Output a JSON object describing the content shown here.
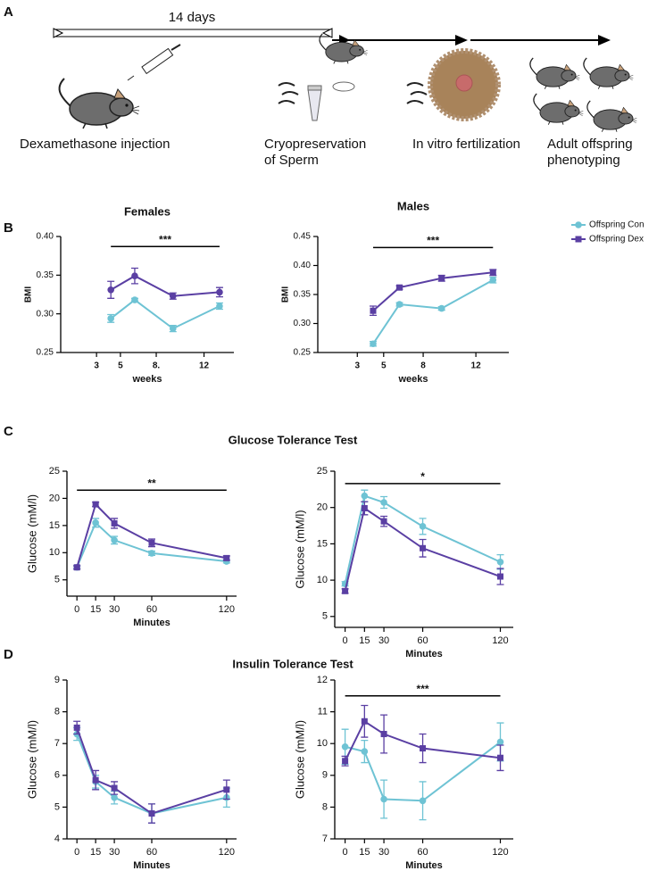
{
  "figure": {
    "panel_labels": [
      "A",
      "B",
      "C",
      "D"
    ],
    "duration": "14 days",
    "steps": [
      [
        "Dexamethasone injection"
      ],
      [
        "Cryopreservation",
        "of Sperm"
      ],
      [
        "In vitro fertilization"
      ],
      [
        "Adult offspring",
        "phenotyping"
      ]
    ],
    "section_titles": [
      "Glucose Tolerance Test",
      "Insulin Tolerance Test"
    ]
  },
  "chart_data": [
    {
      "type": "line",
      "title": "Females",
      "xlabel": "weeks",
      "ylabel": "BMI",
      "x": [
        4.2,
        6.2,
        9.4,
        13.3
      ],
      "xlim": [
        0,
        14.5
      ],
      "xticks": [
        3,
        5,
        {
          "value": 8,
          "label": "8."
        },
        12
      ],
      "ylim": [
        0.25,
        0.4
      ],
      "yticks": [
        {
          "value": 0.25,
          "label": "0.25"
        },
        {
          "value": 0.3,
          "label": "0.30"
        },
        {
          "value": 0.35,
          "label": "0.35"
        },
        {
          "value": 0.4,
          "label": "0.40"
        }
      ],
      "series": [
        {
          "color": "#6ec3d4",
          "marker": "circle",
          "values": [
            0.294,
            0.318,
            0.281,
            0.31
          ],
          "errors": [
            0.005,
            0.002,
            0.004,
            0.004
          ]
        },
        {
          "color": "#5a3fa3",
          "marker": "circle",
          "values": [
            0.331,
            0.349,
            0.323,
            0.328
          ],
          "errors": [
            0.011,
            0.01,
            0.004,
            0.006
          ]
        }
      ],
      "annotation": {
        "text": "***",
        "x": [
          4.2,
          13.3
        ],
        "y": 0.387
      }
    },
    {
      "type": "line",
      "title": "Males",
      "xlabel": "weeks",
      "ylabel": "BMI",
      "x": [
        4.2,
        6.2,
        9.4,
        13.3
      ],
      "xlim": [
        0,
        14.5
      ],
      "xticks": [
        3,
        5,
        8,
        12
      ],
      "ylim": [
        0.25,
        0.45
      ],
      "yticks": [
        {
          "value": 0.25,
          "label": "0.25"
        },
        {
          "value": 0.3,
          "label": "0.30"
        },
        {
          "value": 0.35,
          "label": "0.35"
        },
        {
          "value": 0.4,
          "label": "0.40"
        },
        {
          "value": 0.45,
          "label": "0.45"
        }
      ],
      "series": [
        {
          "name": "Offspring Con",
          "color": "#6ec3d4",
          "marker": "circle",
          "values": [
            0.265,
            0.333,
            0.326,
            0.375
          ],
          "errors": [
            0.004,
            0.003,
            0.003,
            0.005
          ]
        },
        {
          "name": "Offspring Dex",
          "color": "#5a3fa3",
          "marker": "square",
          "values": [
            0.322,
            0.362,
            0.378,
            0.388
          ],
          "errors": [
            0.008,
            0.003,
            0.005,
            0.005
          ]
        }
      ],
      "legend": "outside right",
      "annotation": {
        "text": "***",
        "x": [
          4.2,
          13.3
        ],
        "y": 0.431
      }
    },
    {
      "type": "line",
      "xlabel": "Minutes",
      "ylabel": "Glucose (mM/l)",
      "x": [
        0,
        15,
        30,
        60,
        120
      ],
      "xlim": [
        -8,
        128
      ],
      "xticks": [
        0,
        15,
        30,
        60,
        120
      ],
      "ylim": [
        2,
        25
      ],
      "yticks": [
        5,
        10,
        15,
        20,
        25
      ],
      "series": [
        {
          "color": "#6ec3d4",
          "marker": "circle",
          "values": [
            7.3,
            15.5,
            12.3,
            9.9,
            8.4
          ],
          "errors": [
            0.3,
            0.8,
            0.7,
            0.4,
            0.3
          ]
        },
        {
          "color": "#5a3fa3",
          "marker": "square",
          "values": [
            7.3,
            18.9,
            15.4,
            11.8,
            9.0
          ],
          "errors": [
            0.3,
            0.4,
            0.9,
            0.7,
            0.4
          ]
        }
      ],
      "annotation": {
        "text": "**",
        "x": [
          0,
          120
        ],
        "y": 21.5
      }
    },
    {
      "type": "line",
      "xlabel": "Minutes",
      "ylabel": "Glucose (mM/l)",
      "x": [
        0,
        15,
        30,
        60,
        120
      ],
      "xlim": [
        -8,
        130
      ],
      "xticks": [
        0,
        15,
        30,
        60,
        120
      ],
      "ylim": [
        3.5,
        25
      ],
      "yticks": [
        5,
        10,
        15,
        20,
        25
      ],
      "series": [
        {
          "color": "#6ec3d4",
          "marker": "circle",
          "values": [
            9.5,
            21.6,
            20.7,
            17.4,
            12.5
          ],
          "errors": [
            0.3,
            0.8,
            0.8,
            1.1,
            1.0
          ]
        },
        {
          "color": "#5a3fa3",
          "marker": "square",
          "values": [
            8.5,
            19.9,
            18.1,
            14.4,
            10.5
          ],
          "errors": [
            0.3,
            0.9,
            0.7,
            1.2,
            1.1
          ]
        }
      ],
      "annotation": {
        "text": "*",
        "x": [
          0,
          120
        ],
        "y": 23.3
      }
    },
    {
      "type": "line",
      "xlabel": "Minutes",
      "ylabel": "Glucose (mM/l)",
      "x": [
        0,
        15,
        30,
        60,
        120
      ],
      "xlim": [
        -8,
        128
      ],
      "xticks": [
        0,
        15,
        30,
        60,
        120
      ],
      "ylim": [
        4,
        9
      ],
      "yticks": [
        4,
        5,
        6,
        7,
        8,
        9
      ],
      "series": [
        {
          "color": "#6ec3d4",
          "marker": "circle",
          "values": [
            7.3,
            5.8,
            5.3,
            4.8,
            5.3
          ],
          "errors": [
            0.2,
            0.2,
            0.2,
            0.3,
            0.3
          ]
        },
        {
          "color": "#5a3fa3",
          "marker": "square",
          "values": [
            7.5,
            5.85,
            5.6,
            4.8,
            5.55
          ],
          "errors": [
            0.2,
            0.3,
            0.2,
            0.3,
            0.3
          ]
        }
      ]
    },
    {
      "type": "line",
      "xlabel": "Minutes",
      "ylabel": "Glucose (mM/l)",
      "x": [
        0,
        15,
        30,
        60,
        120
      ],
      "xlim": [
        -8,
        130
      ],
      "xticks": [
        0,
        15,
        30,
        60,
        120
      ],
      "ylim": [
        7,
        12
      ],
      "yticks": [
        7,
        8,
        9,
        10,
        11,
        12
      ],
      "series": [
        {
          "color": "#6ec3d4",
          "marker": "circle",
          "values": [
            9.9,
            9.75,
            8.25,
            8.2,
            10.05
          ],
          "errors": [
            0.55,
            0.35,
            0.6,
            0.6,
            0.6
          ]
        },
        {
          "color": "#5a3fa3",
          "marker": "square",
          "values": [
            9.45,
            10.7,
            10.3,
            9.85,
            9.55
          ],
          "errors": [
            0.15,
            0.5,
            0.6,
            0.45,
            0.4
          ]
        }
      ],
      "annotation": {
        "text": "***",
        "x": [
          0,
          120
        ],
        "y": 11.5
      }
    }
  ]
}
